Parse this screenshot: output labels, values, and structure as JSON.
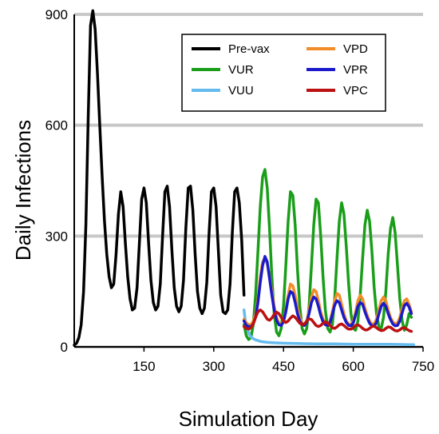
{
  "chart_data": {
    "type": "line",
    "title": "",
    "xlabel": "Simulation Day",
    "ylabel": "Daily Infections",
    "xlim": [
      0,
      750
    ],
    "ylim": [
      0,
      900
    ],
    "x_ticks": [
      "150",
      "300",
      "450",
      "600",
      "750"
    ],
    "y_ticks": [
      "0",
      "300",
      "600",
      "900"
    ],
    "grid": "horizontal",
    "legend_position": "top-right",
    "series": [
      {
        "name": "Pre-vax",
        "color": "#000000",
        "x": [
          0,
          5,
          10,
          15,
          20,
          25,
          30,
          35,
          40,
          45,
          50,
          55,
          60,
          65,
          70,
          75,
          80,
          85,
          90,
          95,
          100,
          105,
          110,
          115,
          120,
          125,
          130,
          135,
          140,
          145,
          150,
          155,
          160,
          165,
          170,
          175,
          180,
          185,
          190,
          195,
          200,
          205,
          210,
          215,
          220,
          225,
          230,
          235,
          240,
          245,
          250,
          255,
          260,
          265,
          270,
          275,
          280,
          285,
          290,
          295,
          300,
          305,
          310,
          315,
          320,
          325,
          330,
          335,
          340,
          345,
          350,
          355,
          360,
          363,
          365
        ],
        "values": [
          5,
          10,
          25,
          60,
          150,
          330,
          620,
          870,
          910,
          860,
          740,
          600,
          460,
          340,
          250,
          190,
          160,
          170,
          250,
          360,
          420,
          380,
          280,
          190,
          130,
          100,
          105,
          160,
          280,
          400,
          430,
          390,
          280,
          180,
          120,
          100,
          110,
          170,
          300,
          420,
          435,
          380,
          260,
          160,
          110,
          95,
          110,
          180,
          320,
          430,
          435,
          370,
          250,
          150,
          105,
          90,
          105,
          175,
          310,
          420,
          430,
          380,
          260,
          140,
          95,
          90,
          100,
          170,
          310,
          420,
          430,
          390,
          290,
          200,
          140
        ]
      },
      {
        "name": "VUR",
        "color": "#1a9e1a",
        "x": [
          365,
          370,
          375,
          380,
          385,
          390,
          395,
          400,
          405,
          410,
          415,
          420,
          425,
          430,
          435,
          440,
          445,
          450,
          455,
          460,
          465,
          470,
          475,
          480,
          485,
          490,
          495,
          500,
          505,
          510,
          515,
          520,
          525,
          530,
          535,
          540,
          545,
          550,
          555,
          560,
          565,
          570,
          575,
          580,
          585,
          590,
          595,
          600,
          605,
          610,
          615,
          620,
          625,
          630,
          635,
          640,
          645,
          650,
          655,
          660,
          665,
          670,
          675,
          680,
          685,
          690,
          695,
          700,
          705,
          710,
          715,
          720,
          725
        ],
        "values": [
          60,
          30,
          20,
          25,
          60,
          140,
          260,
          380,
          460,
          480,
          430,
          320,
          190,
          90,
          40,
          30,
          50,
          110,
          220,
          340,
          420,
          410,
          330,
          210,
          110,
          50,
          35,
          50,
          110,
          220,
          330,
          400,
          390,
          300,
          190,
          100,
          50,
          40,
          60,
          130,
          240,
          340,
          390,
          360,
          270,
          170,
          90,
          50,
          45,
          70,
          140,
          240,
          330,
          370,
          340,
          260,
          160,
          90,
          55,
          50,
          80,
          150,
          250,
          320,
          350,
          310,
          220,
          130,
          70,
          45,
          60,
          90,
          80
        ]
      },
      {
        "name": "VUU",
        "color": "#66bbee",
        "x": [
          365,
          368,
          372,
          376,
          380,
          385,
          390,
          395,
          400,
          410,
          420,
          430,
          450,
          480,
          520,
          560,
          600,
          640,
          680,
          720,
          730
        ],
        "values": [
          100,
          70,
          48,
          35,
          27,
          22,
          19,
          17,
          15,
          13,
          12,
          11,
          10,
          9,
          8,
          8,
          7,
          7,
          7,
          6,
          6
        ]
      },
      {
        "name": "VPD",
        "color": "#f28c28",
        "x": [
          365,
          370,
          375,
          380,
          385,
          390,
          395,
          400,
          405,
          410,
          415,
          420,
          425,
          430,
          435,
          440,
          445,
          450,
          455,
          460,
          465,
          470,
          475,
          480,
          485,
          490,
          495,
          500,
          505,
          510,
          515,
          520,
          525,
          530,
          535,
          540,
          545,
          550,
          555,
          560,
          565,
          570,
          575,
          580,
          585,
          590,
          595,
          600,
          605,
          610,
          615,
          620,
          625,
          630,
          635,
          640,
          645,
          650,
          655,
          660,
          665,
          670,
          675,
          680,
          685,
          690,
          695,
          700,
          705,
          710,
          715,
          720,
          725
        ],
        "values": [
          75,
          65,
          60,
          60,
          70,
          90,
          130,
          190,
          230,
          240,
          225,
          190,
          150,
          110,
          80,
          65,
          60,
          70,
          100,
          140,
          170,
          165,
          140,
          105,
          80,
          65,
          60,
          70,
          100,
          135,
          155,
          150,
          125,
          95,
          75,
          65,
          60,
          70,
          95,
          125,
          145,
          140,
          115,
          90,
          70,
          62,
          60,
          70,
          95,
          125,
          140,
          130,
          105,
          85,
          70,
          62,
          62,
          75,
          100,
          125,
          135,
          125,
          100,
          80,
          68,
          62,
          65,
          80,
          105,
          125,
          130,
          115,
          95
        ]
      },
      {
        "name": "VPR",
        "color": "#1a1acc",
        "x": [
          365,
          370,
          375,
          380,
          385,
          390,
          395,
          400,
          405,
          410,
          415,
          420,
          425,
          430,
          435,
          440,
          445,
          450,
          455,
          460,
          465,
          470,
          475,
          480,
          485,
          490,
          495,
          500,
          505,
          510,
          515,
          520,
          525,
          530,
          535,
          540,
          545,
          550,
          555,
          560,
          565,
          570,
          575,
          580,
          585,
          590,
          595,
          600,
          605,
          610,
          615,
          620,
          625,
          630,
          635,
          640,
          645,
          650,
          655,
          660,
          665,
          670,
          675,
          680,
          685,
          690,
          695,
          700,
          705,
          710,
          715,
          720,
          725
        ],
        "values": [
          70,
          58,
          55,
          55,
          62,
          80,
          120,
          175,
          220,
          245,
          230,
          185,
          140,
          100,
          72,
          60,
          58,
          68,
          95,
          130,
          150,
          145,
          120,
          90,
          70,
          60,
          58,
          66,
          90,
          120,
          135,
          130,
          110,
          85,
          68,
          60,
          58,
          66,
          88,
          113,
          125,
          120,
          100,
          80,
          66,
          58,
          57,
          65,
          86,
          110,
          120,
          115,
          95,
          78,
          64,
          57,
          57,
          66,
          88,
          110,
          118,
          110,
          90,
          74,
          62,
          57,
          58,
          70,
          92,
          112,
          118,
          108,
          90
        ]
      },
      {
        "name": "VPC",
        "color": "#bb1111",
        "x": [
          365,
          370,
          375,
          380,
          385,
          390,
          395,
          400,
          405,
          410,
          415,
          420,
          425,
          430,
          435,
          440,
          445,
          450,
          455,
          460,
          465,
          470,
          475,
          480,
          485,
          490,
          495,
          500,
          505,
          510,
          515,
          520,
          525,
          530,
          535,
          540,
          545,
          550,
          555,
          560,
          565,
          570,
          575,
          580,
          585,
          590,
          595,
          600,
          605,
          610,
          615,
          620,
          625,
          630,
          635,
          640,
          645,
          650,
          655,
          660,
          665,
          670,
          675,
          680,
          685,
          690,
          695,
          700,
          705,
          710,
          715,
          720,
          725
        ],
        "values": [
          55,
          50,
          48,
          52,
          62,
          80,
          95,
          100,
          95,
          85,
          75,
          72,
          78,
          88,
          94,
          90,
          80,
          70,
          66,
          70,
          78,
          84,
          80,
          72,
          64,
          60,
          62,
          70,
          76,
          74,
          66,
          58,
          55,
          58,
          64,
          68,
          64,
          58,
          52,
          50,
          54,
          60,
          62,
          58,
          52,
          48,
          48,
          52,
          58,
          60,
          56,
          50,
          46,
          46,
          50,
          55,
          56,
          52,
          47,
          44,
          45,
          50,
          54,
          53,
          48,
          44,
          43,
          46,
          51,
          52,
          48,
          44,
          42
        ]
      }
    ]
  }
}
